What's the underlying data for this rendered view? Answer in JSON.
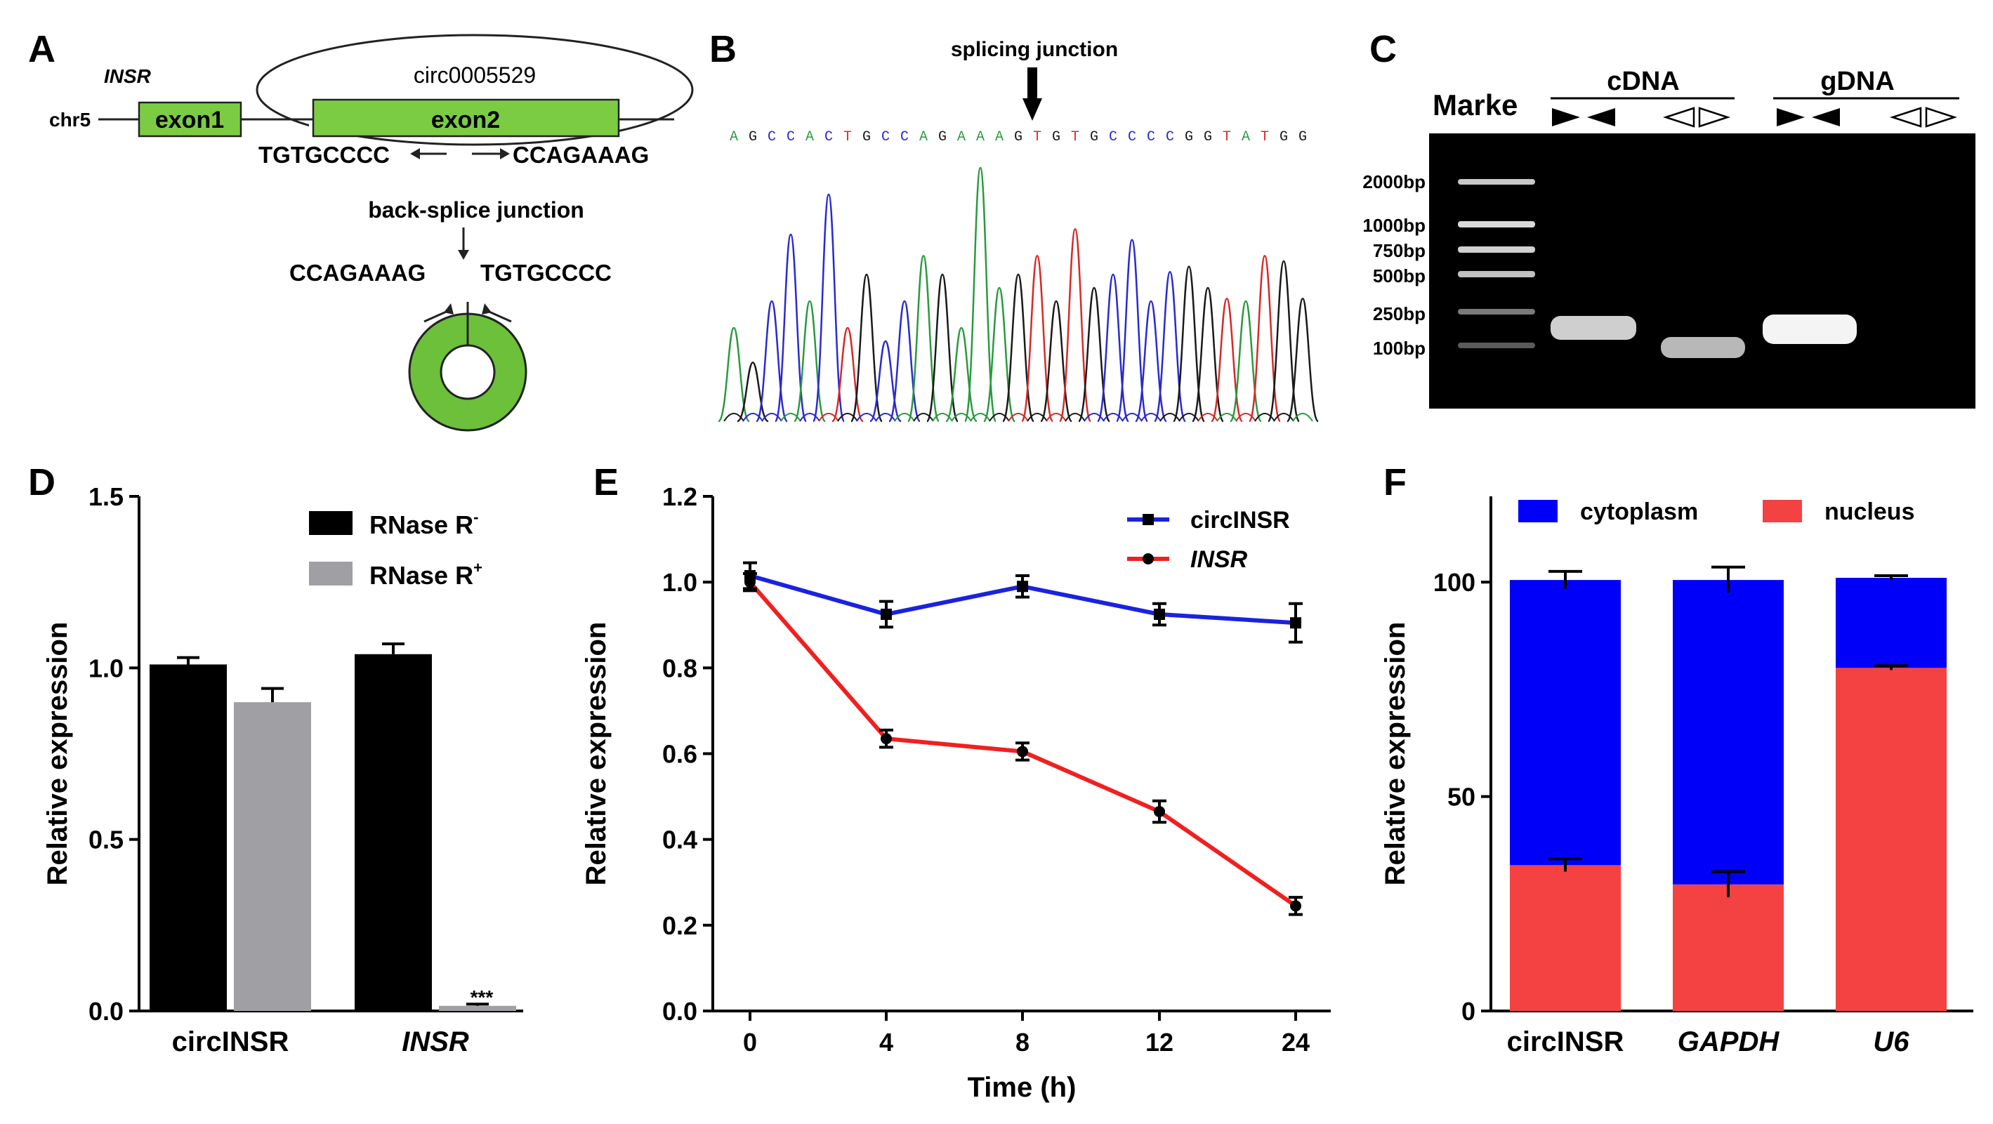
{
  "panels": {
    "A": {
      "letter": "A",
      "gene": "INSR",
      "chrom": "chr5",
      "circ": "circ0005529",
      "exon1": "exon1",
      "exon2": "exon2",
      "seq_left": "TGTGCCCC",
      "seq_right": "CCAGAAAG",
      "bsj_label": "back-splice junction",
      "bsj_left": "CCAGAAAG",
      "bsj_right": "TGTGCCCC",
      "colors": {
        "exon": "#7ccc43",
        "ring": "#6cc03a"
      }
    },
    "B": {
      "letter": "B",
      "junction_label": "splicing junction",
      "sequence": "AGCCACTGCCAGAAAGTGTGCCCCGGTATGG",
      "base_colors": {
        "A": "#2a9a3f",
        "G": "#1a1a1a",
        "C": "#2a2ad0",
        "T": "#d62a2a"
      }
    },
    "C": {
      "letter": "C",
      "marker": "Marke",
      "cdna": "cDNA",
      "gdna": "gDNA",
      "ladder": [
        "2000bp",
        "1000bp",
        "750bp",
        "500bp",
        "250bp",
        "100bp"
      ]
    }
  },
  "charts": {
    "D": {
      "letter": "D",
      "legend": [
        {
          "base": "RNase R",
          "sup": "-",
          "color": "#000000"
        },
        {
          "base": "RNase R",
          "sup": "+",
          "color": "#a0a0a4"
        }
      ],
      "significance": "***"
    },
    "E": {
      "letter": "E"
    },
    "F": {
      "letter": "F"
    }
  },
  "chart_data": [
    {
      "type": "bar",
      "panel": "D",
      "ylabel": "Relative expression",
      "ylim": [
        0,
        1.5
      ],
      "yticks": [
        "0.0",
        "0.5",
        "1.0",
        "1.5"
      ],
      "categories": [
        "circINSR",
        "INSR"
      ],
      "category_italic": [
        false,
        true
      ],
      "series": [
        {
          "name": "RNase R-",
          "color": "#000000",
          "values": [
            1.01,
            1.04
          ],
          "errors": [
            0.02,
            0.03
          ]
        },
        {
          "name": "RNase R+",
          "color": "#a0a0a4",
          "values": [
            0.9,
            0.015
          ],
          "errors": [
            0.04,
            0.005
          ]
        }
      ]
    },
    {
      "type": "line",
      "panel": "E",
      "xlabel": "Time (h)",
      "ylabel": "Relative expression",
      "ylim": [
        0,
        1.2
      ],
      "yticks": [
        "0.0",
        "0.2",
        "0.4",
        "0.6",
        "0.8",
        "1.0",
        "1.2"
      ],
      "x": [
        "0",
        "4",
        "8",
        "12",
        "24"
      ],
      "series": [
        {
          "name": "circINSR",
          "italic": false,
          "color": "#1a22e0",
          "marker": "square",
          "values": [
            1.015,
            0.925,
            0.99,
            0.925,
            0.905
          ],
          "errors": [
            0.03,
            0.03,
            0.025,
            0.025,
            0.045
          ]
        },
        {
          "name": "INSR",
          "italic": true,
          "color": "#f02020",
          "marker": "circle",
          "values": [
            1.0,
            0.635,
            0.605,
            0.465,
            0.245
          ],
          "errors": [
            0.02,
            0.02,
            0.02,
            0.025,
            0.02
          ]
        }
      ]
    },
    {
      "type": "bar",
      "stacked": true,
      "panel": "F",
      "ylabel": "Relative expression",
      "ylim": [
        0,
        120
      ],
      "yticks": [
        "0",
        "50",
        "100"
      ],
      "categories": [
        "circINSR",
        "GAPDH",
        "U6"
      ],
      "category_italic": [
        false,
        true,
        true
      ],
      "series": [
        {
          "name": "nucleus",
          "color": "#f44242",
          "values": [
            34,
            29.5,
            80
          ],
          "errors": [
            1.5,
            3,
            0.5
          ]
        },
        {
          "name": "cytoplasm",
          "color": "#0000fa",
          "values": [
            66.5,
            71,
            21
          ],
          "errors": [
            2,
            3,
            0.5
          ]
        }
      ]
    }
  ]
}
